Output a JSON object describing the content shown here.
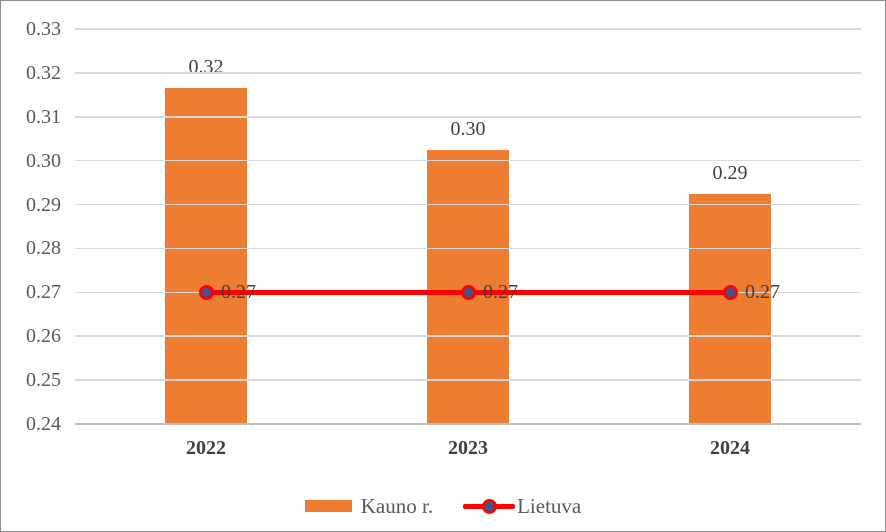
{
  "chart_data": {
    "type": "bar",
    "subtype": "bar-with-line-overlay",
    "title": "",
    "xlabel": "",
    "ylabel": "",
    "categories": [
      "2022",
      "2023",
      "2024"
    ],
    "series": [
      {
        "name": "Kauno r.",
        "type": "bar",
        "color": "#ED7D31",
        "values": [
          0.3165,
          0.3025,
          0.2925
        ],
        "data_labels": [
          "0.32",
          "0.30",
          "0.29"
        ]
      },
      {
        "name": "Lietuva",
        "type": "line",
        "color": "#FF0000",
        "marker_color": "#3A5795",
        "values": [
          0.27,
          0.27,
          0.27
        ],
        "data_labels": [
          "0.27",
          "0.27",
          "0.27"
        ]
      }
    ],
    "ylim": [
      0.24,
      0.33
    ],
    "ytick_step": 0.01,
    "ytick_labels": [
      "0.24",
      "0.25",
      "0.26",
      "0.27",
      "0.28",
      "0.29",
      "0.30",
      "0.31",
      "0.32",
      "0.33"
    ],
    "grid": true,
    "legend_position": "bottom"
  },
  "colors": {
    "bar_orange": "#ED7D31",
    "line_red": "#FF0000",
    "marker_blue": "#3A5795",
    "gridline": "#D9D9D9",
    "axis_text": "#595959",
    "label_text": "#404040"
  }
}
